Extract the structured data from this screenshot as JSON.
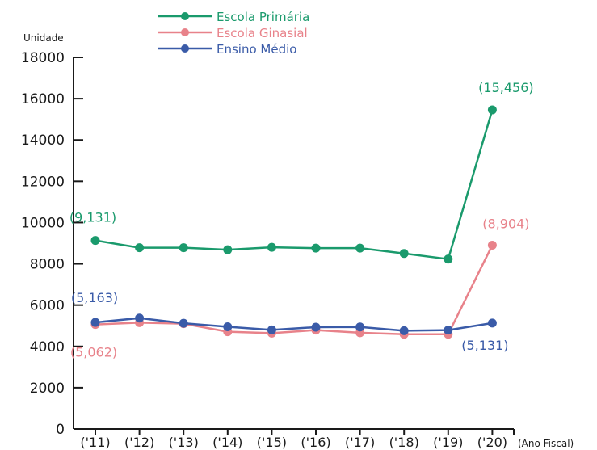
{
  "chart_data": {
    "type": "line",
    "ylabel": "Unidade",
    "xlabel": "(Ano Fiscal)",
    "ylim": [
      0,
      18000
    ],
    "yticks": [
      0,
      2000,
      4000,
      6000,
      8000,
      10000,
      12000,
      14000,
      16000,
      18000
    ],
    "categories": [
      "('11)",
      "('12)",
      "('13)",
      "('14)",
      "('15)",
      "('16)",
      "('17)",
      "('18)",
      "('19)",
      "('20)"
    ],
    "grid": false,
    "legend_position": "top",
    "series": [
      {
        "name": "Escola Primária",
        "color": "#1a9a6c",
        "values": [
          9131,
          8780,
          8780,
          8680,
          8800,
          8760,
          8760,
          8500,
          8230,
          15456
        ]
      },
      {
        "name": "Escola Ginasial",
        "color": "#e8828a",
        "values": [
          5062,
          5150,
          5100,
          4710,
          4640,
          4790,
          4660,
          4590,
          4590,
          8904
        ]
      },
      {
        "name": "Ensino Médio",
        "color": "#3a5ba8",
        "values": [
          5163,
          5370,
          5120,
          4950,
          4800,
          4930,
          4940,
          4760,
          4790,
          5131
        ]
      }
    ],
    "annotations": [
      {
        "text": "(9,131)",
        "series": 0,
        "index": 0,
        "color": "#1a9a6c"
      },
      {
        "text": "(15,456)",
        "series": 0,
        "index": 9,
        "color": "#1a9a6c"
      },
      {
        "text": "(8,904)",
        "series": 1,
        "index": 9,
        "color": "#e8828a"
      },
      {
        "text": "(5,062)",
        "series": 1,
        "index": 0,
        "color": "#e8828a"
      },
      {
        "text": "(5,163)",
        "series": 2,
        "index": 0,
        "color": "#3a5ba8"
      },
      {
        "text": "(5,131)",
        "series": 2,
        "index": 9,
        "color": "#3a5ba8"
      }
    ]
  }
}
